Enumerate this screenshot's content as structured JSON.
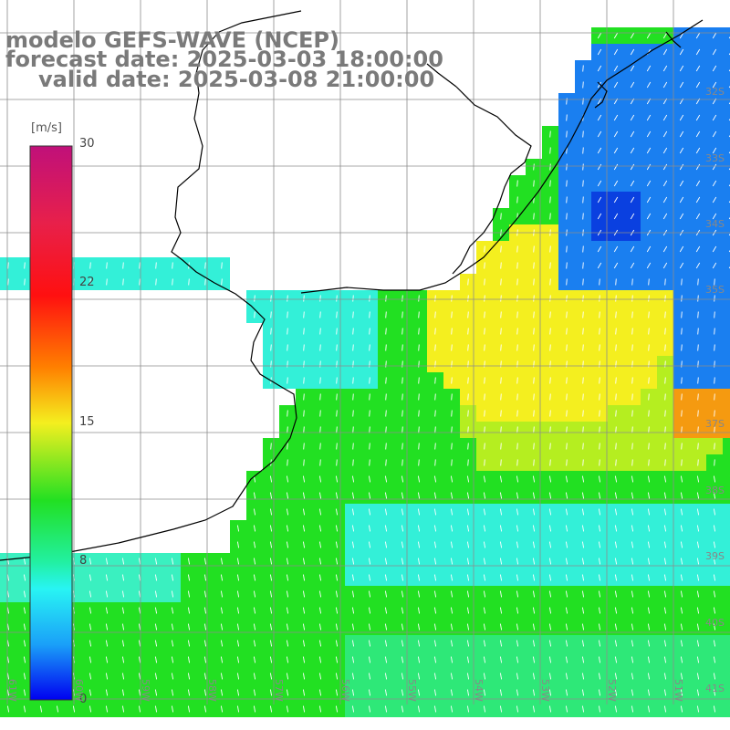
{
  "title": {
    "line1": "modelo GEFS-WAVE (NCEP)",
    "line2": "forecast date: 2025-03-03 18:00:00",
    "line3": "valid date: 2025-03-08 21:00:00"
  },
  "legend": {
    "unit": "[m/s]",
    "ticks": [
      "30",
      "22",
      "15",
      "8",
      "0"
    ]
  },
  "lat_labels": [
    "32S",
    "33S",
    "34S",
    "35S",
    "37S",
    "38S",
    "39S",
    "40S",
    "41S"
  ],
  "lon_labels": [
    "61W",
    "60W",
    "59W",
    "58W",
    "57W",
    "56W",
    "55W",
    "54W",
    "53W",
    "52W",
    "51W"
  ],
  "colors": {
    "ocean_green": "#22e022",
    "ocean_cyan": "#33f0d8",
    "yellow": "#f4ef1f",
    "blue": "#0a6fe8",
    "land": "#ffffff",
    "grid": "#8c8c8c",
    "coast": "#000000",
    "vector": "#ffffff"
  }
}
